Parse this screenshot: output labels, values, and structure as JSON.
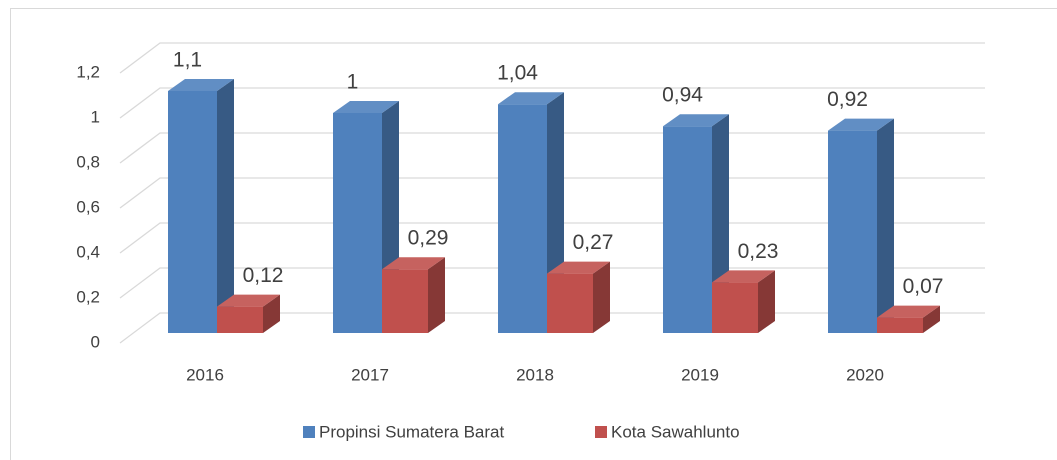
{
  "chart_data": {
    "type": "bar3d",
    "categories": [
      "2016",
      "2017",
      "2018",
      "2019",
      "2020"
    ],
    "series": [
      {
        "name": "Propinsi Sumatera Barat",
        "color": "#4f81bd",
        "values": [
          1.1,
          1,
          1.04,
          0.94,
          0.92
        ],
        "value_labels": [
          "1,1",
          "1",
          "1,04",
          "0,94",
          "0,92"
        ]
      },
      {
        "name": "Kota Sawahlunto",
        "color": "#c0504d",
        "values": [
          0.12,
          0.29,
          0.27,
          0.23,
          0.07
        ],
        "value_labels": [
          "0,12",
          "0,29",
          "0,27",
          "0,23",
          "0,07"
        ]
      }
    ],
    "ylim": [
      0,
      1.2
    ],
    "yticks": [
      0,
      {
        "value": 0.2,
        "label": "0,2"
      },
      {
        "value": 0.4,
        "label": "0,4"
      },
      {
        "value": 0.6,
        "label": "0,6"
      },
      {
        "value": 0.8,
        "label": "0,8"
      },
      1,
      {
        "value": 1.2,
        "label": "1,2"
      }
    ],
    "grid": true,
    "legend": "bottom"
  }
}
